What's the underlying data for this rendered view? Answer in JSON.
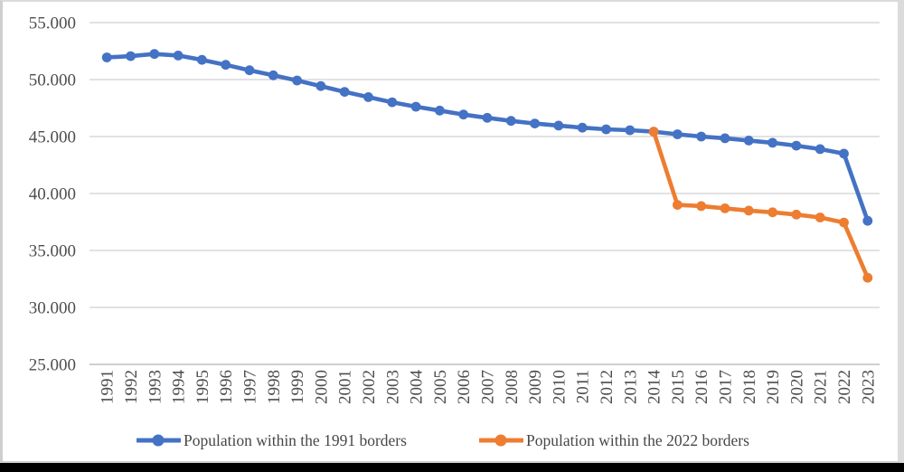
{
  "figure": {
    "background_color": "#ffffff",
    "frame_bar_color": "#000000"
  },
  "chart_data": {
    "type": "line",
    "title": "",
    "xlabel": "",
    "ylabel": "",
    "categories": [
      "1991",
      "1992",
      "1993",
      "1994",
      "1995",
      "1996",
      "1997",
      "1998",
      "1999",
      "2000",
      "2001",
      "2002",
      "2003",
      "2004",
      "2005",
      "2006",
      "2007",
      "2008",
      "2009",
      "2010",
      "2011",
      "2012",
      "2013",
      "2014",
      "2015",
      "2016",
      "2017",
      "2018",
      "2019",
      "2020",
      "2021",
      "2022",
      "2023"
    ],
    "series": [
      {
        "name": "Population within the 1991 borders",
        "color": "#4472C4",
        "values": [
          51944,
          52057,
          52244,
          52114,
          51728,
          51297,
          50818,
          50370,
          49918,
          49430,
          48923,
          48457,
          48004,
          47622,
          47281,
          46930,
          46646,
          46373,
          46144,
          45963,
          45779,
          45633,
          45553,
          45426,
          45200,
          45000,
          44850,
          44650,
          44450,
          44200,
          43900,
          43500,
          37600
        ]
      },
      {
        "name": "Population within the 2022 borders",
        "color": "#ED7D31",
        "values": [
          null,
          null,
          null,
          null,
          null,
          null,
          null,
          null,
          null,
          null,
          null,
          null,
          null,
          null,
          null,
          null,
          null,
          null,
          null,
          null,
          null,
          null,
          null,
          45426,
          39000,
          38900,
          38700,
          38500,
          38350,
          38150,
          37900,
          37450,
          32600
        ]
      }
    ],
    "y_axis": {
      "min": 25000,
      "max": 55000,
      "tick_step": 5000,
      "tick_labels": [
        "55.000",
        "50.000",
        "45.000",
        "40.000",
        "35.000",
        "30.000",
        "25.000"
      ]
    },
    "grid": "horizontal-on",
    "legend_position": "bottom",
    "styles": {
      "axis_text_color": "#4d4d4d",
      "gridline_color": "#d9d9d9",
      "axis_line_color": "#bfbfbf"
    }
  }
}
